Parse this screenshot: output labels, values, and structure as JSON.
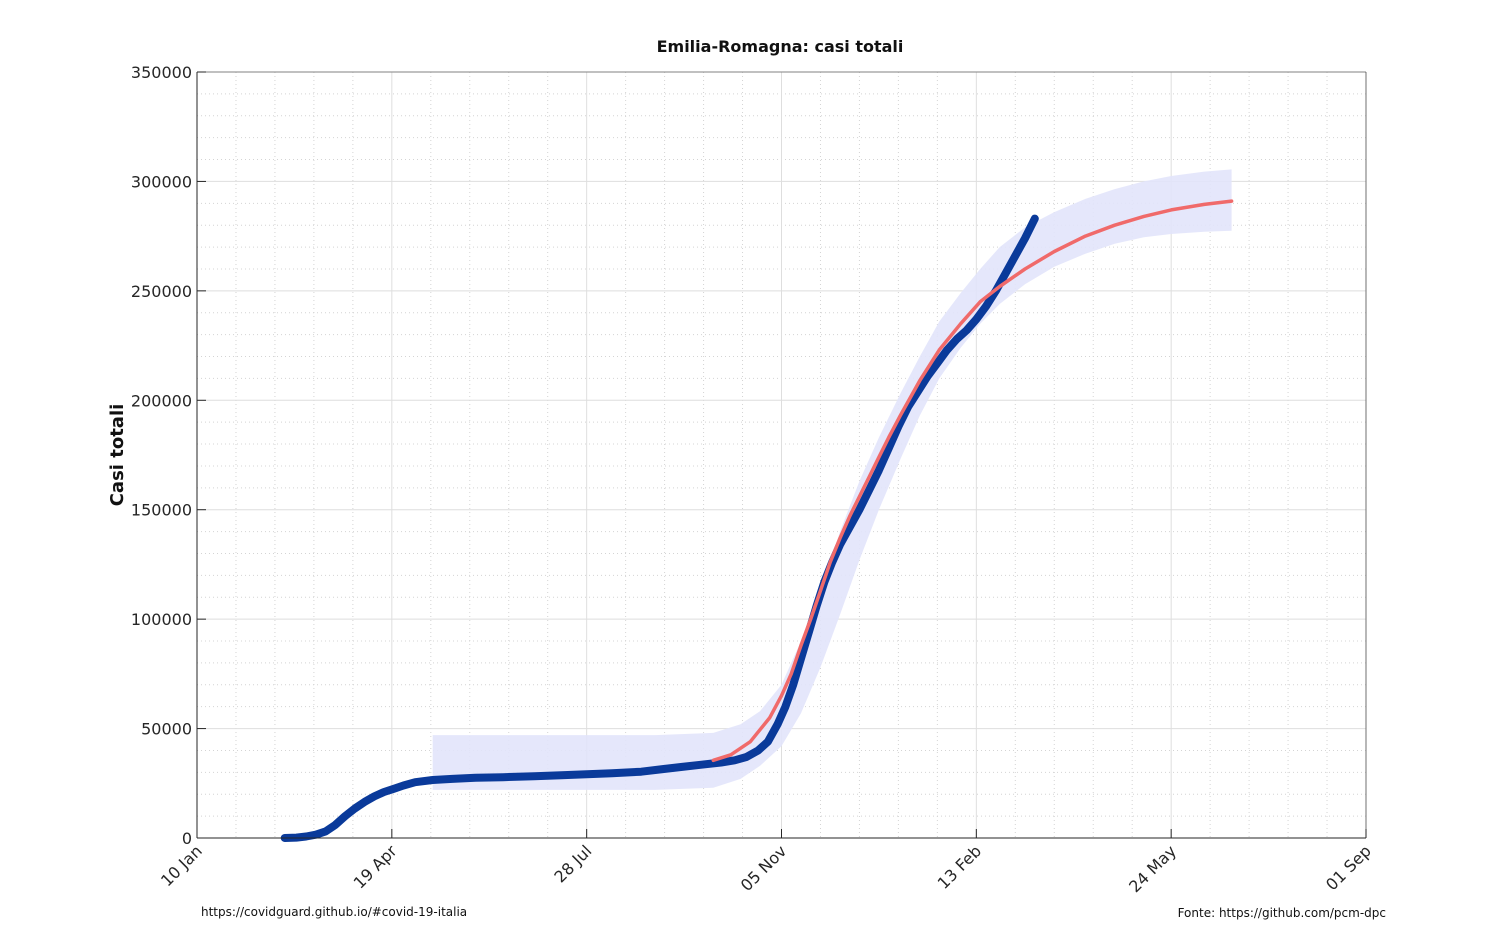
{
  "chart_data": {
    "type": "line",
    "title": "Emilia-Romagna: casi totali",
    "xlabel": "",
    "ylabel": "Casi totali",
    "x_axis": "date",
    "xlim": [
      "2020-01-10",
      "2021-09-01"
    ],
    "ylim": [
      0,
      350000
    ],
    "x_ticks": [
      {
        "date": "2020-01-10",
        "label": "10 Jan"
      },
      {
        "date": "2020-04-19",
        "label": "19 Apr"
      },
      {
        "date": "2020-07-28",
        "label": "28 Jul"
      },
      {
        "date": "2020-11-05",
        "label": "05 Nov"
      },
      {
        "date": "2021-02-13",
        "label": "13 Feb"
      },
      {
        "date": "2021-05-24",
        "label": "24 May"
      },
      {
        "date": "2021-09-01",
        "label": "01 Sep"
      }
    ],
    "y_ticks": [
      0,
      50000,
      100000,
      150000,
      200000,
      250000,
      300000,
      350000
    ],
    "grid": true,
    "minor_grid": true,
    "legend": "none",
    "series": [
      {
        "role": "observed",
        "color": "#0a3a9a",
        "points": [
          [
            "2020-02-24",
            0
          ],
          [
            "2020-03-01",
            200
          ],
          [
            "2020-03-06",
            700
          ],
          [
            "2020-03-11",
            1500
          ],
          [
            "2020-03-16",
            3000
          ],
          [
            "2020-03-21",
            6000
          ],
          [
            "2020-03-26",
            10000
          ],
          [
            "2020-03-31",
            13500
          ],
          [
            "2020-04-05",
            16500
          ],
          [
            "2020-04-10",
            19000
          ],
          [
            "2020-04-15",
            21000
          ],
          [
            "2020-04-20",
            22500
          ],
          [
            "2020-04-25",
            24000
          ],
          [
            "2020-05-01",
            25500
          ],
          [
            "2020-05-10",
            26500
          ],
          [
            "2020-05-20",
            27000
          ],
          [
            "2020-06-01",
            27500
          ],
          [
            "2020-06-15",
            27800
          ],
          [
            "2020-07-01",
            28200
          ],
          [
            "2020-07-15",
            28700
          ],
          [
            "2020-07-28",
            29100
          ],
          [
            "2020-08-10",
            29600
          ],
          [
            "2020-08-25",
            30300
          ],
          [
            "2020-09-05",
            31500
          ],
          [
            "2020-09-15",
            32500
          ],
          [
            "2020-09-25",
            33500
          ],
          [
            "2020-10-05",
            34500
          ],
          [
            "2020-10-12",
            35500
          ],
          [
            "2020-10-18",
            37000
          ],
          [
            "2020-10-24",
            40000
          ],
          [
            "2020-10-29",
            44000
          ],
          [
            "2020-11-03",
            52000
          ],
          [
            "2020-11-07",
            60000
          ],
          [
            "2020-11-11",
            70000
          ],
          [
            "2020-11-15",
            82000
          ],
          [
            "2020-11-19",
            94000
          ],
          [
            "2020-11-23",
            106000
          ],
          [
            "2020-11-27",
            117000
          ],
          [
            "2020-12-01",
            126000
          ],
          [
            "2020-12-05",
            134000
          ],
          [
            "2020-12-10",
            142000
          ],
          [
            "2020-12-15",
            150000
          ],
          [
            "2020-12-20",
            159000
          ],
          [
            "2020-12-25",
            168000
          ],
          [
            "2020-12-30",
            178000
          ],
          [
            "2021-01-04",
            188000
          ],
          [
            "2021-01-09",
            197000
          ],
          [
            "2021-01-14",
            204000
          ],
          [
            "2021-01-19",
            211000
          ],
          [
            "2021-01-24",
            217000
          ],
          [
            "2021-01-29",
            223000
          ],
          [
            "2021-02-03",
            228000
          ],
          [
            "2021-02-08",
            232000
          ],
          [
            "2021-02-13",
            237000
          ],
          [
            "2021-02-18",
            243000
          ],
          [
            "2021-02-23",
            250000
          ],
          [
            "2021-02-28",
            258000
          ],
          [
            "2021-03-05",
            266000
          ],
          [
            "2021-03-10",
            274000
          ],
          [
            "2021-03-15",
            283000
          ]
        ]
      },
      {
        "role": "fit",
        "color": "#f06a6a",
        "points": [
          [
            "2020-10-01",
            35500
          ],
          [
            "2020-10-10",
            38000
          ],
          [
            "2020-10-20",
            44000
          ],
          [
            "2020-10-30",
            55000
          ],
          [
            "2020-11-05",
            65000
          ],
          [
            "2020-11-10",
            75000
          ],
          [
            "2020-11-15",
            88000
          ],
          [
            "2020-11-20",
            100000
          ],
          [
            "2020-11-25",
            113000
          ],
          [
            "2020-11-30",
            126000
          ],
          [
            "2020-12-05",
            137000
          ],
          [
            "2020-12-10",
            147000
          ],
          [
            "2020-12-15",
            156000
          ],
          [
            "2020-12-20",
            165000
          ],
          [
            "2020-12-25",
            174000
          ],
          [
            "2020-12-30",
            183000
          ],
          [
            "2021-01-05",
            193000
          ],
          [
            "2021-01-15",
            209000
          ],
          [
            "2021-01-25",
            223000
          ],
          [
            "2021-02-05",
            235000
          ],
          [
            "2021-02-15",
            245000
          ],
          [
            "2021-02-25",
            252000
          ],
          [
            "2021-03-10",
            260000
          ],
          [
            "2021-03-25",
            268000
          ],
          [
            "2021-04-10",
            275000
          ],
          [
            "2021-04-25",
            280000
          ],
          [
            "2021-05-10",
            284000
          ],
          [
            "2021-05-24",
            287000
          ],
          [
            "2021-06-10",
            289500
          ],
          [
            "2021-06-24",
            291000
          ]
        ]
      }
    ],
    "bands": [
      {
        "role": "confidence",
        "color": "#e2e4fb",
        "upper": [
          [
            "2020-05-10",
            47000
          ],
          [
            "2020-06-15",
            47000
          ],
          [
            "2020-07-28",
            47000
          ],
          [
            "2020-09-01",
            47000
          ],
          [
            "2020-10-01",
            48000
          ],
          [
            "2020-10-15",
            52000
          ],
          [
            "2020-10-25",
            58000
          ],
          [
            "2020-11-05",
            70000
          ],
          [
            "2020-11-15",
            90000
          ],
          [
            "2020-11-25",
            113000
          ],
          [
            "2020-12-05",
            140000
          ],
          [
            "2020-12-15",
            163000
          ],
          [
            "2020-12-25",
            183000
          ],
          [
            "2021-01-05",
            203000
          ],
          [
            "2021-01-15",
            220000
          ],
          [
            "2021-01-25",
            236000
          ],
          [
            "2021-02-05",
            249000
          ],
          [
            "2021-02-15",
            260000
          ],
          [
            "2021-02-25",
            270000
          ],
          [
            "2021-03-10",
            279000
          ],
          [
            "2021-03-25",
            286000
          ],
          [
            "2021-04-10",
            292000
          ],
          [
            "2021-04-25",
            296500
          ],
          [
            "2021-05-10",
            300000
          ],
          [
            "2021-05-24",
            302500
          ],
          [
            "2021-06-10",
            304500
          ],
          [
            "2021-06-24",
            305500
          ]
        ],
        "lower": [
          [
            "2020-05-10",
            22000
          ],
          [
            "2020-06-15",
            22000
          ],
          [
            "2020-07-28",
            22000
          ],
          [
            "2020-09-01",
            22000
          ],
          [
            "2020-10-01",
            23000
          ],
          [
            "2020-10-15",
            27000
          ],
          [
            "2020-10-25",
            33000
          ],
          [
            "2020-11-05",
            42000
          ],
          [
            "2020-11-15",
            57000
          ],
          [
            "2020-11-25",
            78000
          ],
          [
            "2020-12-05",
            102000
          ],
          [
            "2020-12-15",
            127000
          ],
          [
            "2020-12-25",
            150000
          ],
          [
            "2021-01-05",
            173000
          ],
          [
            "2021-01-15",
            193000
          ],
          [
            "2021-01-25",
            210000
          ],
          [
            "2021-02-05",
            224000
          ],
          [
            "2021-02-15",
            235000
          ],
          [
            "2021-02-25",
            244000
          ],
          [
            "2021-03-10",
            253000
          ],
          [
            "2021-03-25",
            261000
          ],
          [
            "2021-04-10",
            267000
          ],
          [
            "2021-04-25",
            271500
          ],
          [
            "2021-05-10",
            274500
          ],
          [
            "2021-05-24",
            276000
          ],
          [
            "2021-06-10",
            277000
          ],
          [
            "2021-06-24",
            277500
          ]
        ]
      }
    ]
  },
  "footer": {
    "left": "https://covidguard.github.io/#covid-19-italia",
    "right": "Fonte: https://github.com/pcm-dpc"
  }
}
